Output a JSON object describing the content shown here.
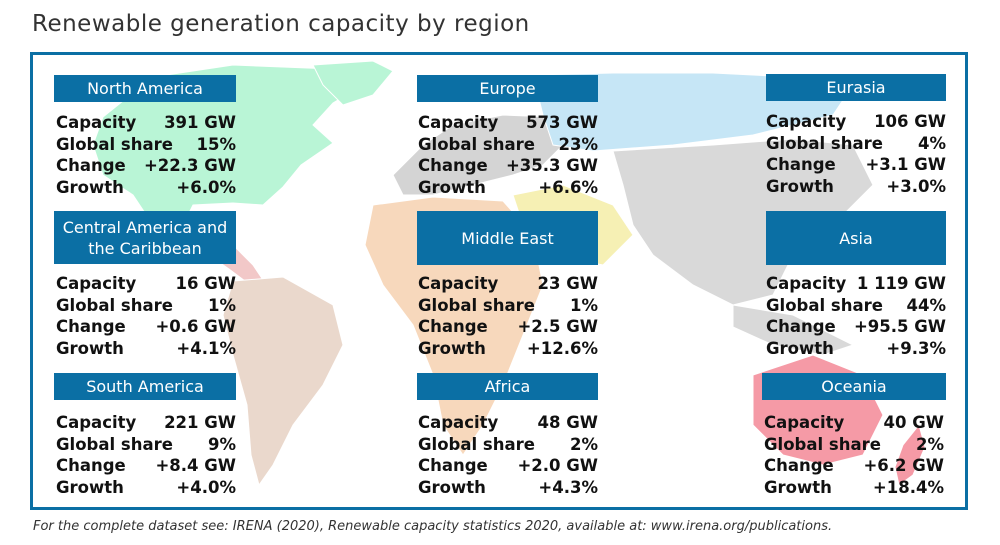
{
  "title": "Renewable generation capacity by region",
  "labels": {
    "capacity": "Capacity",
    "share": "Global share",
    "change": "Change",
    "growth": "Growth"
  },
  "regions": [
    {
      "name": "North America",
      "capacity": "391 GW",
      "share": "15%",
      "change": "+22.3 GW",
      "growth": "+6.0%",
      "map_color": "#b9f5d6"
    },
    {
      "name": "Europe",
      "capacity": "573 GW",
      "share": "23%",
      "change": "+35.3 GW",
      "growth": "+6.6%",
      "map_color": "#d4d4d4"
    },
    {
      "name": "Eurasia",
      "capacity": "106 GW",
      "share": "4%",
      "change": "+3.1 GW",
      "growth": "+3.0%",
      "map_color": "#c6e6f6"
    },
    {
      "name": "Central America and the Caribbean",
      "capacity": "16 GW",
      "share": "1%",
      "change": "+0.6 GW",
      "growth": "+4.1%",
      "map_color": "#f2c8c8"
    },
    {
      "name": "Middle East",
      "capacity": "23 GW",
      "share": "1%",
      "change": "+2.5 GW",
      "growth": "+12.6%",
      "map_color": "#f6f0b4"
    },
    {
      "name": "Asia",
      "capacity": "1 119 GW",
      "share": "44%",
      "change": "+95.5 GW",
      "growth": "+9.3%",
      "map_color": "#d9d9d9"
    },
    {
      "name": "South America",
      "capacity": "221 GW",
      "share": "9%",
      "change": "+8.4 GW",
      "growth": "+4.0%",
      "map_color": "#ead8cc"
    },
    {
      "name": "Africa",
      "capacity": "48 GW",
      "share": "2%",
      "change": "+2.0 GW",
      "growth": "+4.3%",
      "map_color": "#f7d8bc"
    },
    {
      "name": "Oceania",
      "capacity": "40 GW",
      "share": "2%",
      "change": "+6.2 GW",
      "growth": "+18.4%",
      "map_color": "#f59aa6"
    }
  ],
  "footnote": "For the complete dataset see: IRENA (2020), Renewable capacity statistics 2020, available at: www.irena.org/publications."
}
